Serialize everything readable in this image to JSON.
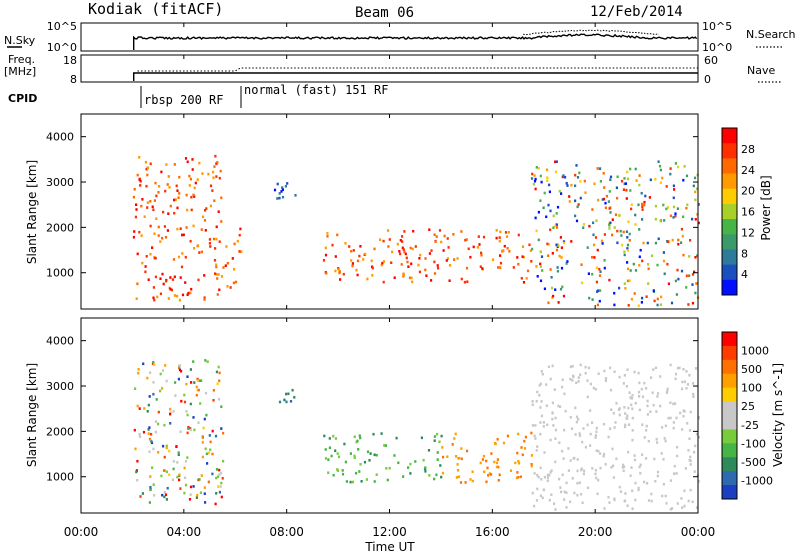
{
  "header": {
    "station": "Kodiak (fitACF)",
    "beam": "Beam 06",
    "date": "12/Feb/2014"
  },
  "noise_panel": {
    "left_label": "N.Sky",
    "left_ticks": [
      "10^5",
      "10^0"
    ],
    "right_label": "N.Search",
    "right_ticks": [
      "10^5",
      "10^0"
    ]
  },
  "freq_panel": {
    "left_label_line1": "Freq.",
    "left_label_line2": "[MHz]",
    "left_ticks": [
      "18",
      "8"
    ],
    "right_label": "Nave",
    "right_ticks": [
      "60",
      "0"
    ]
  },
  "cpid": {
    "label": "CPID",
    "segments": [
      "rbsp 200 RF",
      "normal (fast) 151 RF"
    ]
  },
  "x_axis": {
    "label": "Time UT",
    "ticks": [
      "00:00",
      "04:00",
      "08:00",
      "12:00",
      "16:00",
      "20:00",
      "00:00"
    ]
  },
  "chart_data": [
    {
      "type": "heatmap",
      "panel": "power",
      "ylabel": "Slant Range [km]",
      "ylim": [
        200,
        4500
      ],
      "y_ticks": [
        "4000",
        "3000",
        "2000",
        "1000"
      ],
      "xlim": [
        0,
        24
      ],
      "colorbar": {
        "label": "Power [dB]",
        "ticks": [
          "28",
          "24",
          "20",
          "16",
          "12",
          "8",
          "4"
        ],
        "colors": [
          "#0010ff",
          "#1a4fc0",
          "#2e7a9a",
          "#3a9a6a",
          "#46b446",
          "#a8d028",
          "#ffcc00",
          "#ff9a00",
          "#ff6a00",
          "#ff3000",
          "#ff0000"
        ]
      },
      "regions": [
        {
          "t0": 2.0,
          "t1": 5.5,
          "r0": 400,
          "r1": 3600,
          "level": "high"
        },
        {
          "t0": 5.5,
          "t1": 6.2,
          "r0": 700,
          "r1": 2200,
          "level": "high"
        },
        {
          "t0": 7.5,
          "t1": 8.5,
          "r0": 2600,
          "r1": 3100,
          "level": "low"
        },
        {
          "t0": 9.4,
          "t1": 11.0,
          "r0": 800,
          "r1": 1900,
          "level": "high"
        },
        {
          "t0": 11.0,
          "t1": 17.5,
          "r0": 800,
          "r1": 2000,
          "level": "high"
        },
        {
          "t0": 17.5,
          "t1": 24.0,
          "r0": 300,
          "r1": 3500,
          "level": "mixed"
        }
      ]
    },
    {
      "type": "heatmap",
      "panel": "velocity",
      "ylabel": "Slant Range [km]",
      "ylim": [
        200,
        4500
      ],
      "y_ticks": [
        "4000",
        "3000",
        "2000",
        "1000"
      ],
      "xlim": [
        0,
        24
      ],
      "colorbar": {
        "label": "Velocity [m s^-1]",
        "ticks": [
          "1000",
          "500",
          "100",
          "25",
          "-25",
          "-100",
          "-500",
          "-1000"
        ],
        "colors": [
          "#1a3fc0",
          "#2e6ab0",
          "#2e8a5a",
          "#46b446",
          "#78cc3c",
          "#c8c8c8",
          "#c8c8c8",
          "#ffcc00",
          "#ffa000",
          "#ff7000",
          "#ff3c00",
          "#ff0000"
        ]
      },
      "regions": [
        {
          "t0": 2.0,
          "t1": 5.5,
          "r0": 400,
          "r1": 3600,
          "level": "mixed"
        },
        {
          "t0": 7.5,
          "t1": 8.5,
          "r0": 2600,
          "r1": 3100,
          "level": "low"
        },
        {
          "t0": 9.4,
          "t1": 14.0,
          "r0": 900,
          "r1": 2000,
          "level": "green"
        },
        {
          "t0": 14.0,
          "t1": 17.5,
          "r0": 900,
          "r1": 2000,
          "level": "orange"
        },
        {
          "t0": 17.5,
          "t1": 24.0,
          "r0": 300,
          "r1": 3500,
          "level": "grey"
        }
      ]
    }
  ]
}
